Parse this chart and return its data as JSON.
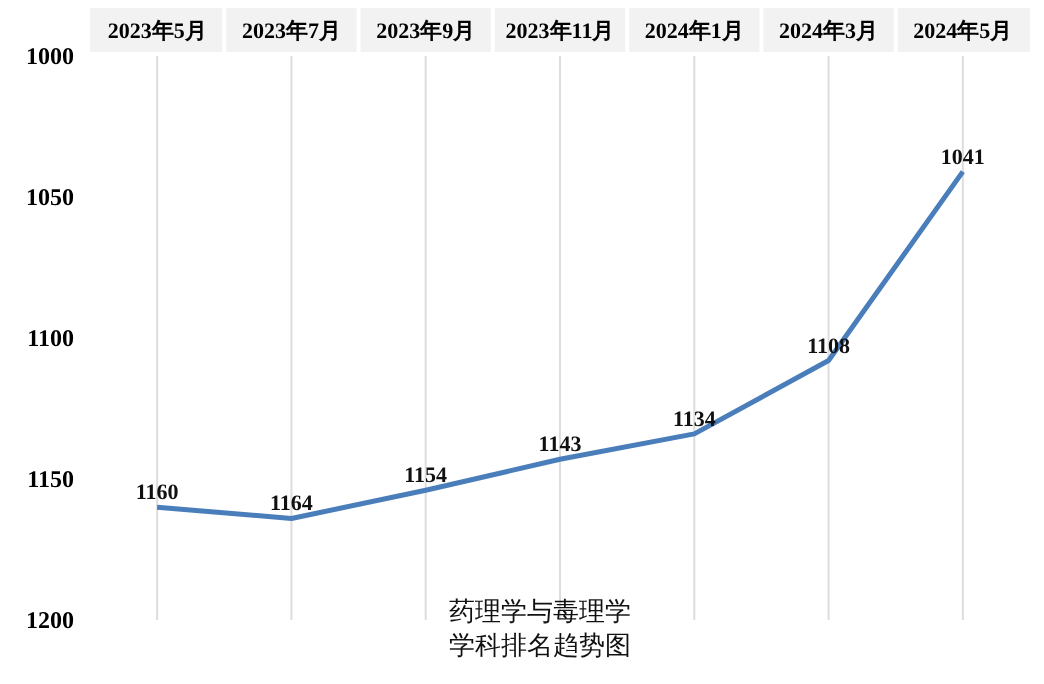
{
  "chart_data": {
    "type": "line",
    "title": "药理学与毒理学",
    "subtitle": "学科排名趋势图",
    "categories": [
      "2023年5月",
      "2023年7月",
      "2023年9月",
      "2023年11月",
      "2024年1月",
      "2024年3月",
      "2024年5月"
    ],
    "series": [
      {
        "color": "#4a7ebb",
        "values": [
          1160,
          1164,
          1154,
          1143,
          1134,
          1108,
          1041
        ]
      }
    ],
    "ylim": [
      1200,
      1000
    ],
    "yticks": [
      1000,
      1050,
      1100,
      1150,
      1200
    ],
    "data_labels": true,
    "grid": "x",
    "marker": "none",
    "line_style": "solid"
  }
}
